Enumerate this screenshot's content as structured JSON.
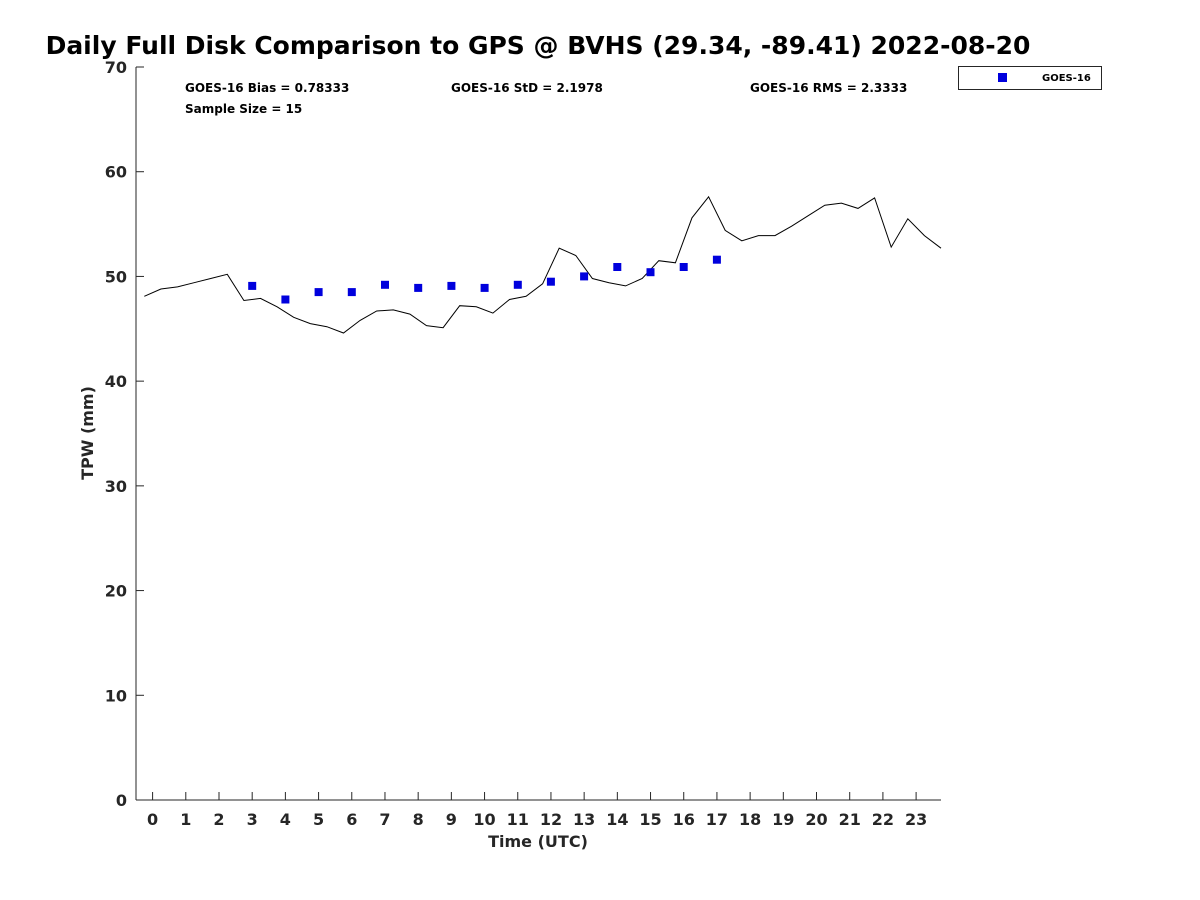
{
  "chart_data": {
    "type": "scatter",
    "title": "Daily Full Disk Comparison to GPS @ BVHS (29.34, -89.41) 2022-08-20",
    "xlabel": "Time (UTC)",
    "ylabel": "TPW (mm)",
    "xlim": [
      -0.5,
      23.75
    ],
    "ylim": [
      0,
      70
    ],
    "x_ticks": [
      0,
      1,
      2,
      3,
      4,
      5,
      6,
      7,
      8,
      9,
      10,
      11,
      12,
      13,
      14,
      15,
      16,
      17,
      18,
      19,
      20,
      21,
      22,
      23
    ],
    "y_ticks": [
      0,
      10,
      20,
      30,
      40,
      50,
      60,
      70
    ],
    "grid": false,
    "legend_position": "top-right",
    "stats": {
      "bias": "GOES-16 Bias = 0.78333",
      "std": "GOES-16 StD = 2.1978",
      "rms": "GOES-16 RMS = 2.3333",
      "sample": "Sample Size = 15"
    },
    "series": [
      {
        "type": "line",
        "color": "#000000",
        "x": [
          -0.25,
          0.25,
          0.75,
          1.25,
          1.75,
          2.25,
          2.75,
          3.25,
          3.75,
          4.25,
          4.75,
          5.25,
          5.75,
          6.25,
          6.75,
          7.25,
          7.75,
          8.25,
          8.75,
          9.25,
          9.75,
          10.25,
          10.75,
          11.25,
          11.75,
          12.25,
          12.75,
          13.25,
          13.75,
          14.25,
          14.75,
          15.25,
          15.75,
          16.25,
          16.75,
          17.25,
          17.75,
          18.25,
          18.75,
          19.25,
          19.75,
          20.25,
          20.75,
          21.25,
          21.75,
          22.25,
          22.75,
          23.25,
          23.75
        ],
        "y": [
          48.1,
          48.8,
          49.0,
          49.4,
          49.8,
          50.2,
          47.7,
          47.9,
          47.1,
          46.1,
          45.5,
          45.2,
          44.6,
          45.8,
          46.7,
          46.8,
          46.4,
          45.3,
          45.1,
          47.2,
          47.1,
          46.5,
          47.8,
          48.1,
          49.3,
          52.7,
          52.0,
          49.8,
          49.4,
          49.1,
          49.8,
          51.5,
          51.3,
          55.6,
          57.6,
          54.4,
          53.4,
          53.9,
          53.9,
          54.8,
          55.8,
          56.8,
          57.0,
          56.5,
          57.5,
          52.8,
          55.5,
          53.9,
          52.7
        ]
      },
      {
        "name": "GOES-16",
        "type": "scatter",
        "color": "#0000dd",
        "marker": "square",
        "x": [
          3,
          4,
          5,
          6,
          7,
          8,
          9,
          10,
          11,
          12,
          13,
          14,
          15,
          16,
          17
        ],
        "y": [
          49.1,
          47.8,
          48.5,
          48.5,
          49.2,
          48.9,
          49.1,
          48.9,
          49.2,
          49.5,
          50.0,
          50.9,
          50.4,
          50.9,
          51.6
        ]
      }
    ]
  }
}
